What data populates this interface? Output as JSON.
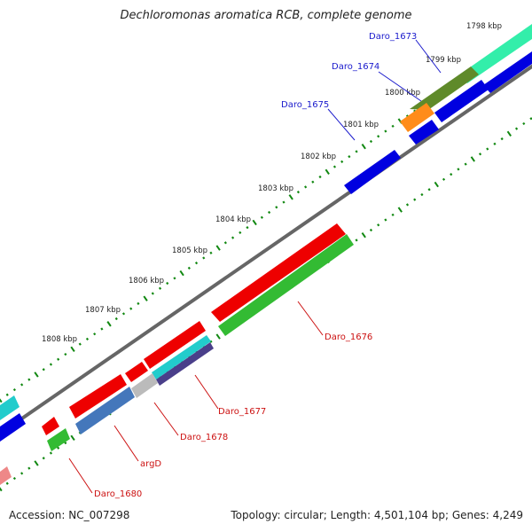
{
  "title": "Dechloromonas aromatica RCB, complete genome",
  "footer": {
    "accession": "Accession: NC_007298",
    "summary": "Topology: circular; Length: 4,501,104 bp; Genes: 4,249"
  },
  "ruler": {
    "labels": [
      "1798 kbp",
      "1799 kbp",
      "1800 kbp",
      "1801 kbp",
      "1802 kbp",
      "1803 kbp",
      "1804 kbp",
      "1805 kbp",
      "1806 kbp",
      "1807 kbp",
      "1808 kbp"
    ]
  },
  "gene_labels": {
    "forward": [
      "Daro_1673",
      "Daro_1674",
      "Daro_1675"
    ],
    "reverse": [
      "Daro_1676",
      "Daro_1677",
      "Daro_1678",
      "argD",
      "Daro_1680"
    ]
  },
  "colors": {
    "forward_label": "#1a1acc",
    "reverse_label": "#cc1111",
    "tick": "#118811",
    "backbone": "#666666",
    "blue_cds": "#0000e0",
    "red_cds": "#ee0000",
    "green_cds": "#33bb33",
    "mint_cds": "#33eeaa",
    "olive_cds": "#5f8a2a",
    "orange_cds": "#ff8c1a",
    "cyan_cds": "#22cccc",
    "steel_cds": "#4477bb",
    "gray_cds": "#bbbbbb",
    "pink_cds": "#ee8888"
  }
}
